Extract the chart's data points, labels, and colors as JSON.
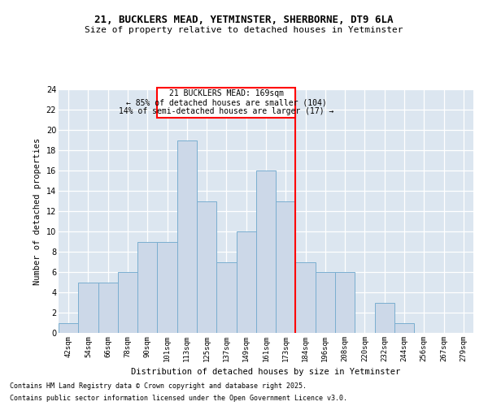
{
  "title1": "21, BUCKLERS MEAD, YETMINSTER, SHERBORNE, DT9 6LA",
  "title2": "Size of property relative to detached houses in Yetminster",
  "xlabel": "Distribution of detached houses by size in Yetminster",
  "ylabel": "Number of detached properties",
  "categories": [
    "42sqm",
    "54sqm",
    "66sqm",
    "78sqm",
    "90sqm",
    "101sqm",
    "113sqm",
    "125sqm",
    "137sqm",
    "149sqm",
    "161sqm",
    "173sqm",
    "184sqm",
    "196sqm",
    "208sqm",
    "220sqm",
    "232sqm",
    "244sqm",
    "256sqm",
    "267sqm",
    "279sqm"
  ],
  "values": [
    1,
    5,
    5,
    6,
    9,
    9,
    19,
    13,
    7,
    10,
    16,
    13,
    7,
    6,
    6,
    0,
    3,
    1,
    0,
    0,
    0
  ],
  "bar_color": "#ccd8e8",
  "bar_edge_color": "#7aaed0",
  "red_line_index": 12.5,
  "ylim": [
    0,
    24
  ],
  "yticks": [
    0,
    2,
    4,
    6,
    8,
    10,
    12,
    14,
    16,
    18,
    20,
    22,
    24
  ],
  "annotation_title": "21 BUCKLERS MEAD: 169sqm",
  "annotation_line1": "← 85% of detached houses are smaller (104)",
  "annotation_line2": "14% of semi-detached houses are larger (17) →",
  "background_color": "#dce6f0",
  "footnote1": "Contains HM Land Registry data © Crown copyright and database right 2025.",
  "footnote2": "Contains public sector information licensed under the Open Government Licence v3.0."
}
